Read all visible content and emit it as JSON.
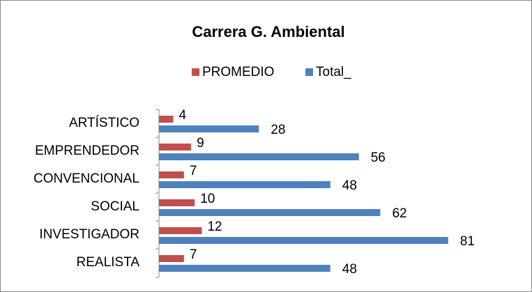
{
  "chart_data": {
    "type": "hbar",
    "title": "Carrera  G. Ambiental",
    "categories": [
      "ARTÍSTICO",
      "EMPRENDEDOR",
      "CONVENCIONAL",
      "SOCIAL",
      "INVESTIGADOR",
      "REALISTA"
    ],
    "series": [
      {
        "name": "PROMEDIO",
        "color": "#c0504d",
        "values": [
          4,
          9,
          7,
          10,
          12,
          7
        ]
      },
      {
        "name": "Total_",
        "color": "#4f81bd",
        "values": [
          28,
          56,
          48,
          62,
          81,
          48
        ]
      }
    ],
    "xlim": [
      0,
      100
    ],
    "legend": "top",
    "grid": false
  }
}
